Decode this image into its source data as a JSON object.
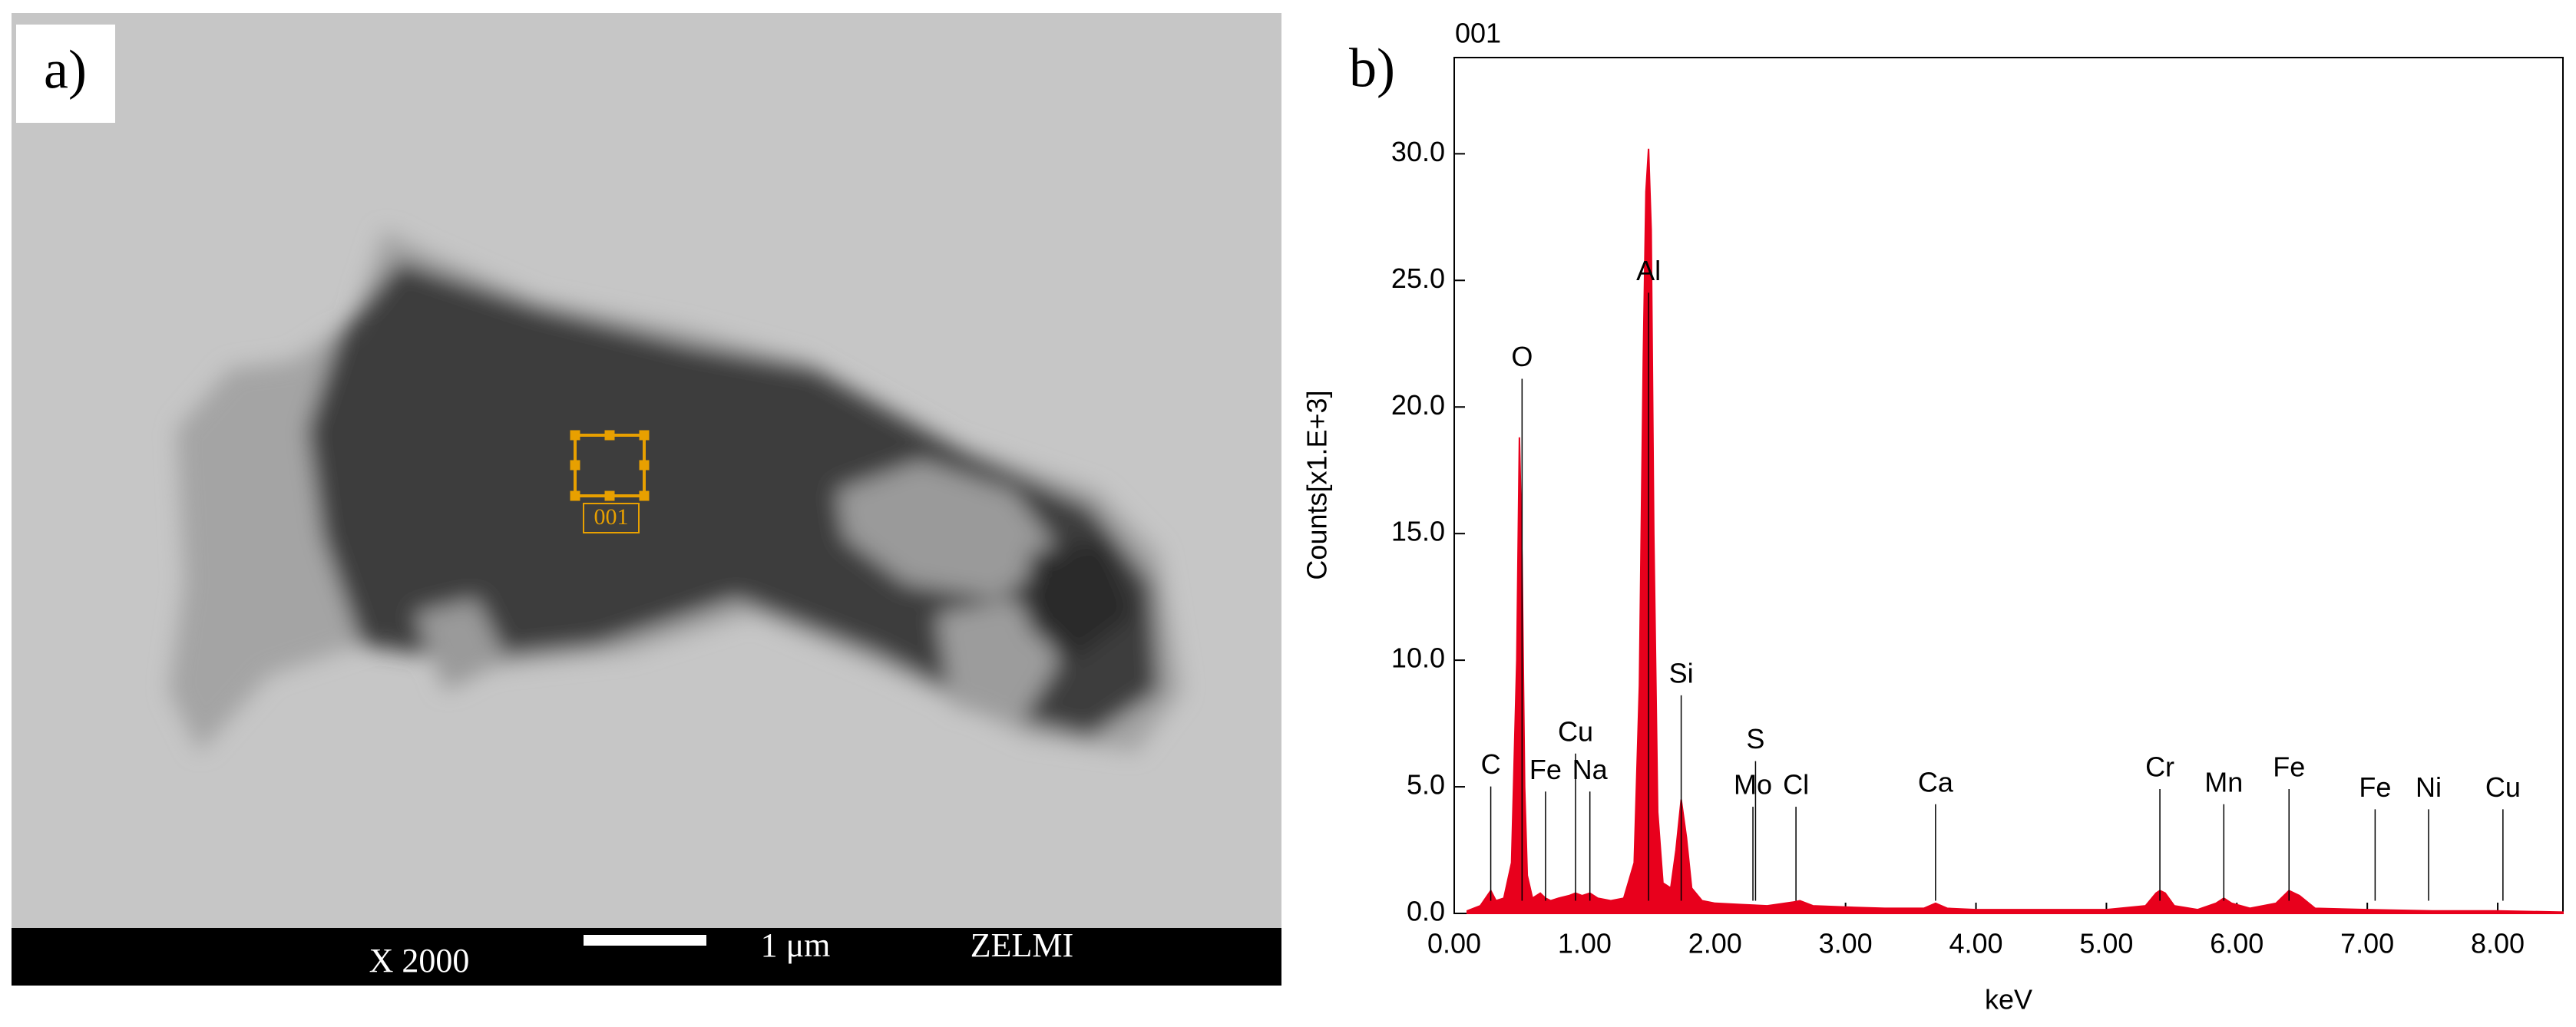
{
  "panel_a": {
    "label": "a)",
    "magnification": "X 2000",
    "scale_bar": "1 μm",
    "lab": "ZELMI",
    "roi_label": "001"
  },
  "chart_data": {
    "type": "area",
    "panel_label": "b)",
    "title": "001",
    "x_label": "keV",
    "y_label": "Counts[x1.E+3]",
    "color": "#e8001c",
    "xlim": [
      0,
      8.5
    ],
    "ylim": [
      0,
      33.8
    ],
    "xticks": [
      {
        "value": 0,
        "label": "0.00"
      },
      {
        "value": 1,
        "label": "1.00"
      },
      {
        "value": 2,
        "label": "2.00"
      },
      {
        "value": 3,
        "label": "3.00"
      },
      {
        "value": 4,
        "label": "4.00"
      },
      {
        "value": 5,
        "label": "5.00"
      },
      {
        "value": 6,
        "label": "6.00"
      },
      {
        "value": 7,
        "label": "7.00"
      },
      {
        "value": 8,
        "label": "8.00"
      }
    ],
    "yticks": [
      {
        "value": 0,
        "label": "0.0"
      },
      {
        "value": 5,
        "label": "5.0"
      },
      {
        "value": 10,
        "label": "10.0"
      },
      {
        "value": 15,
        "label": "15.0"
      },
      {
        "value": 20,
        "label": "20.0"
      },
      {
        "value": 25,
        "label": "25.0"
      },
      {
        "value": 30,
        "label": "30.0"
      }
    ],
    "x": [
      0.1,
      0.2,
      0.24,
      0.28,
      0.32,
      0.38,
      0.44,
      0.48,
      0.5,
      0.52,
      0.54,
      0.56,
      0.6,
      0.66,
      0.7,
      0.74,
      0.8,
      0.88,
      0.93,
      0.98,
      1.04,
      1.1,
      1.2,
      1.3,
      1.38,
      1.42,
      1.45,
      1.47,
      1.49,
      1.51,
      1.53,
      1.56,
      1.6,
      1.66,
      1.7,
      1.74,
      1.78,
      1.82,
      1.9,
      2.0,
      2.2,
      2.4,
      2.6,
      2.65,
      2.75,
      3.0,
      3.3,
      3.6,
      3.69,
      3.78,
      4.0,
      4.5,
      5.0,
      5.3,
      5.38,
      5.41,
      5.45,
      5.52,
      5.7,
      5.84,
      5.9,
      5.96,
      6.1,
      6.3,
      6.4,
      6.48,
      6.6,
      7.0,
      7.5,
      8.0,
      8.5
    ],
    "values": [
      0.1,
      0.3,
      0.6,
      0.9,
      0.5,
      0.6,
      2,
      10,
      18.8,
      14,
      5,
      1.5,
      0.6,
      0.8,
      0.6,
      0.5,
      0.6,
      0.7,
      0.8,
      0.7,
      0.8,
      0.6,
      0.5,
      0.6,
      2,
      9,
      22,
      28.5,
      30.2,
      27,
      15,
      4,
      1.2,
      1,
      2.5,
      4.5,
      3,
      1,
      0.5,
      0.4,
      0.35,
      0.3,
      0.45,
      0.5,
      0.3,
      0.25,
      0.2,
      0.2,
      0.4,
      0.2,
      0.15,
      0.15,
      0.15,
      0.3,
      0.8,
      0.9,
      0.8,
      0.3,
      0.15,
      0.4,
      0.6,
      0.4,
      0.2,
      0.4,
      0.9,
      0.7,
      0.2,
      0.15,
      0.1,
      0.1,
      0.05
    ],
    "peak_labels": [
      {
        "text": "C",
        "x": 0.28,
        "y": 5.8
      },
      {
        "text": "O",
        "x": 0.52,
        "y": 21.9
      },
      {
        "text": "Fe",
        "x": 0.7,
        "y": 5.6
      },
      {
        "text": "Cu",
        "x": 0.93,
        "y": 7.1
      },
      {
        "text": "Na",
        "x": 1.04,
        "y": 5.6
      },
      {
        "text": "Al",
        "x": 1.49,
        "y": 25.3
      },
      {
        "text": "Si",
        "x": 1.74,
        "y": 9.4
      },
      {
        "text": "S",
        "x": 2.31,
        "y": 6.8
      },
      {
        "text": "Mo",
        "x": 2.29,
        "y": 5.0
      },
      {
        "text": "Cl",
        "x": 2.62,
        "y": 5.0
      },
      {
        "text": "Ca",
        "x": 3.69,
        "y": 5.1
      },
      {
        "text": "Cr",
        "x": 5.41,
        "y": 5.7
      },
      {
        "text": "Mn",
        "x": 5.9,
        "y": 5.1
      },
      {
        "text": "Fe",
        "x": 6.4,
        "y": 5.7
      },
      {
        "text": "Fe",
        "x": 7.06,
        "y": 4.9
      },
      {
        "text": "Ni",
        "x": 7.47,
        "y": 4.9
      },
      {
        "text": "Cu",
        "x": 8.04,
        "y": 4.9
      }
    ]
  }
}
